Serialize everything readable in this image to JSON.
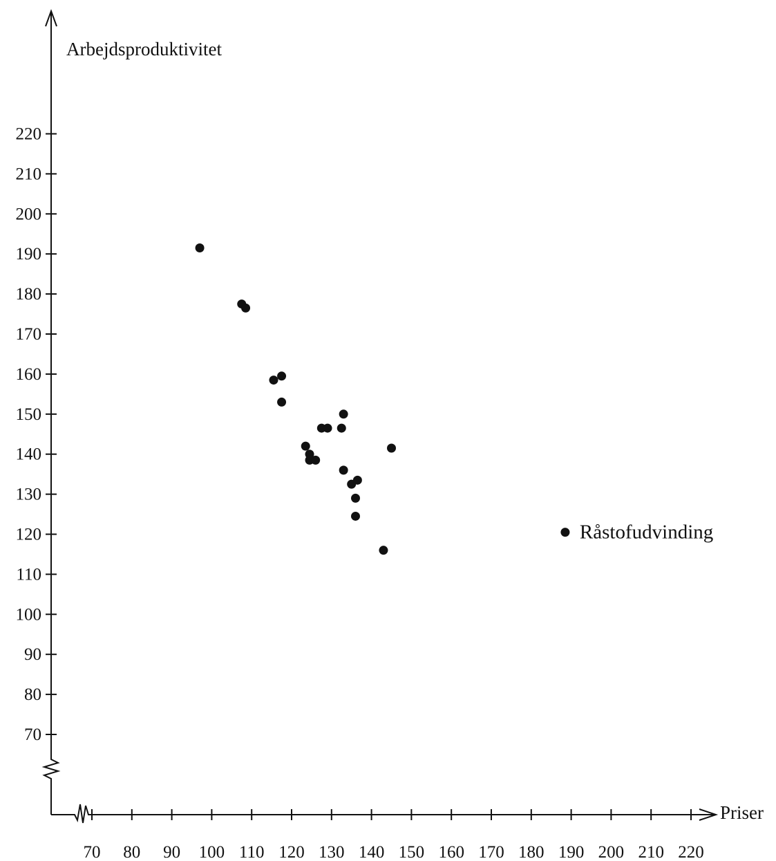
{
  "chart_data": {
    "type": "scatter",
    "ylabel": "Arbejdsproduktivitet",
    "xlabel": "Priser",
    "xlim": [
      65,
      225
    ],
    "ylim": [
      55,
      225
    ],
    "x_ticks": [
      70,
      80,
      90,
      100,
      110,
      120,
      130,
      140,
      150,
      160,
      170,
      180,
      190,
      200,
      210,
      220
    ],
    "y_ticks": [
      70,
      80,
      90,
      100,
      110,
      120,
      130,
      140,
      150,
      160,
      170,
      180,
      190,
      200,
      210,
      220
    ],
    "axis_breaks": [
      "x",
      "y"
    ],
    "grid": false,
    "legend": "none",
    "points": [
      {
        "x": 97,
        "y": 191.5
      },
      {
        "x": 107.5,
        "y": 177.5
      },
      {
        "x": 108.5,
        "y": 176.5
      },
      {
        "x": 115.5,
        "y": 158.5
      },
      {
        "x": 117.5,
        "y": 159.5
      },
      {
        "x": 117.5,
        "y": 153
      },
      {
        "x": 123.5,
        "y": 142
      },
      {
        "x": 124.5,
        "y": 140
      },
      {
        "x": 124.5,
        "y": 138.5
      },
      {
        "x": 126,
        "y": 138.5
      },
      {
        "x": 127.5,
        "y": 146.5
      },
      {
        "x": 129,
        "y": 146.5
      },
      {
        "x": 132.5,
        "y": 146.5
      },
      {
        "x": 133,
        "y": 150
      },
      {
        "x": 133,
        "y": 136
      },
      {
        "x": 135,
        "y": 132.5
      },
      {
        "x": 136.5,
        "y": 133.5
      },
      {
        "x": 136,
        "y": 129
      },
      {
        "x": 136,
        "y": 124.5
      },
      {
        "x": 143,
        "y": 116
      },
      {
        "x": 145,
        "y": 141.5
      },
      {
        "x": 188.5,
        "y": 120.5,
        "label": "Råstofudvinding"
      }
    ],
    "color": "#111111"
  }
}
